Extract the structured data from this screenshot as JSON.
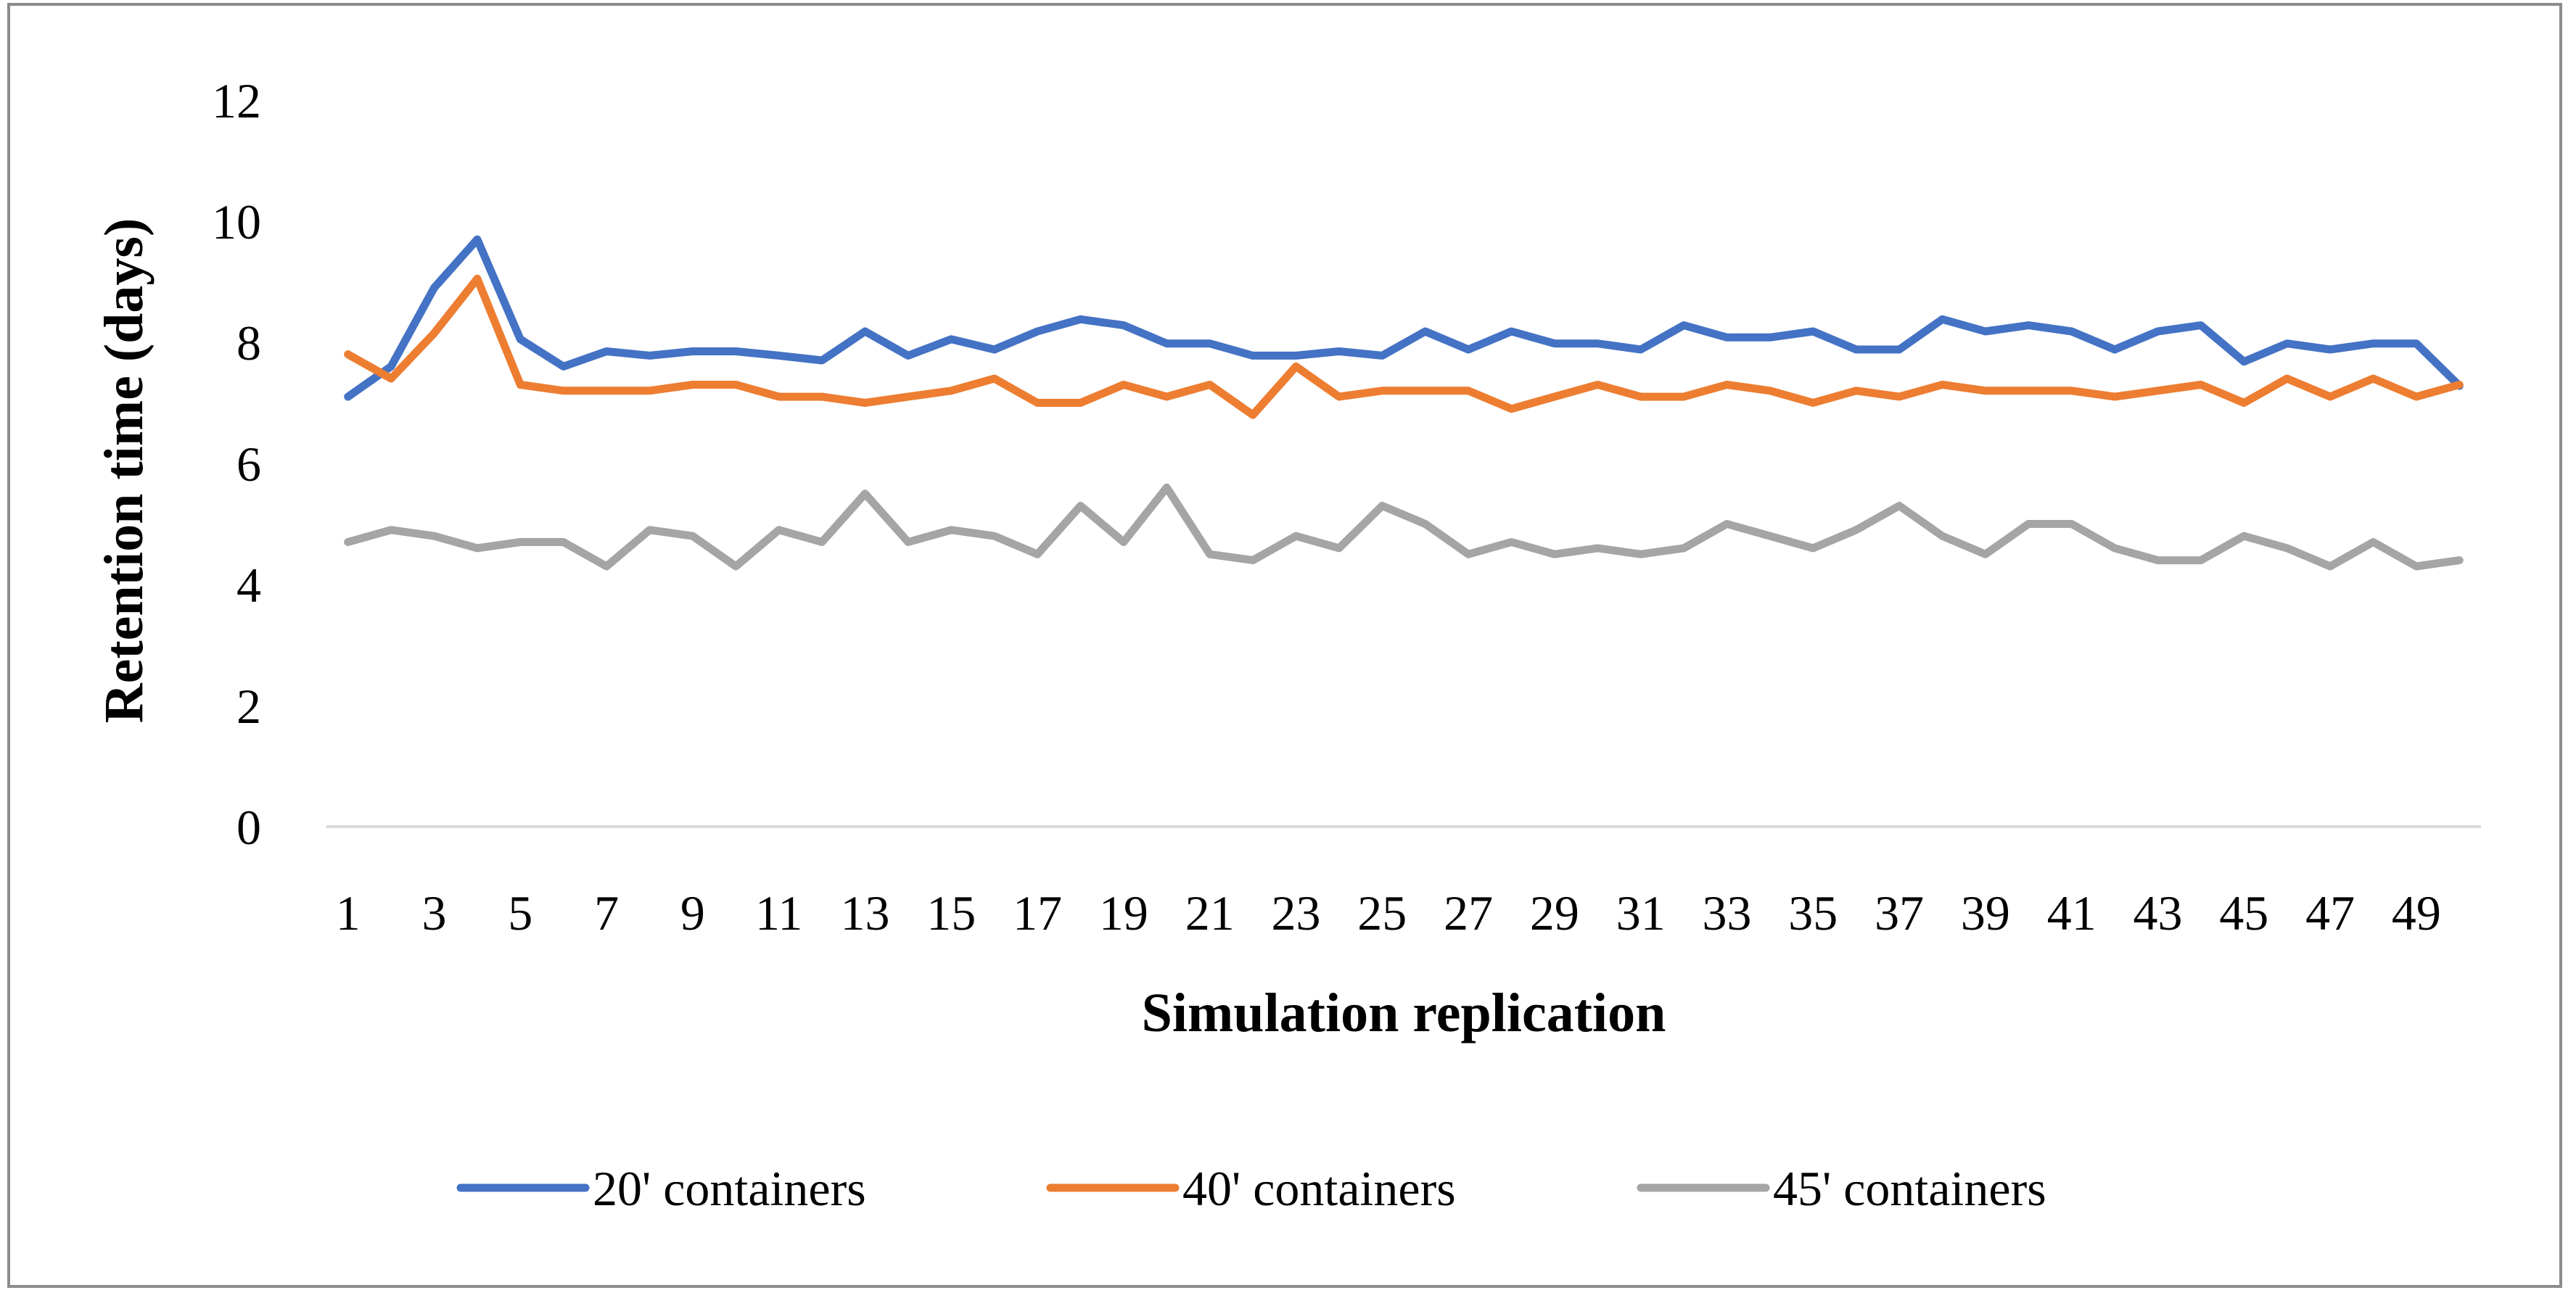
{
  "chart_data": {
    "type": "line",
    "title": "",
    "xlabel": "Simulation replication",
    "ylabel": "Retention time (days)",
    "ylim": [
      0,
      12
    ],
    "yticks": [
      0,
      2,
      4,
      6,
      8,
      10,
      12
    ],
    "grid": false,
    "legend_position": "bottom",
    "x": [
      1,
      2,
      3,
      4,
      5,
      6,
      7,
      8,
      9,
      10,
      11,
      12,
      13,
      14,
      15,
      16,
      17,
      18,
      19,
      20,
      21,
      22,
      23,
      24,
      25,
      26,
      27,
      28,
      29,
      30,
      31,
      32,
      33,
      34,
      35,
      36,
      37,
      38,
      39,
      40,
      41,
      42,
      43,
      44,
      45,
      46,
      47,
      48,
      49,
      50
    ],
    "xtick_labels": [
      "1",
      "3",
      "5",
      "7",
      "9",
      "11",
      "13",
      "15",
      "17",
      "19",
      "21",
      "23",
      "25",
      "27",
      "29",
      "31",
      "33",
      "35",
      "37",
      "39",
      "41",
      "43",
      "45",
      "47",
      "49"
    ],
    "series": [
      {
        "name": "20' containers",
        "color": "#4472c4",
        "values": [
          7.1,
          7.6,
          8.9,
          9.7,
          8.05,
          7.6,
          7.85,
          7.78,
          7.85,
          7.85,
          7.78,
          7.7,
          8.18,
          7.78,
          8.05,
          7.88,
          8.18,
          8.38,
          8.28,
          7.98,
          7.98,
          7.78,
          7.78,
          7.85,
          7.78,
          8.18,
          7.88,
          8.18,
          7.98,
          7.98,
          7.88,
          8.28,
          8.08,
          8.08,
          8.18,
          7.88,
          7.88,
          8.38,
          8.18,
          8.28,
          8.18,
          7.88,
          8.18,
          8.28,
          7.68,
          7.98,
          7.88,
          7.98,
          7.98,
          7.28
        ]
      },
      {
        "name": "40' containers",
        "color": "#ed7d31",
        "values": [
          7.8,
          7.4,
          8.15,
          9.05,
          7.3,
          7.2,
          7.2,
          7.2,
          7.3,
          7.3,
          7.1,
          7.1,
          7.0,
          7.1,
          7.2,
          7.4,
          7.0,
          7.0,
          7.3,
          7.1,
          7.3,
          6.8,
          7.6,
          7.1,
          7.2,
          7.2,
          7.2,
          6.9,
          7.1,
          7.3,
          7.1,
          7.1,
          7.3,
          7.2,
          7.0,
          7.2,
          7.1,
          7.3,
          7.2,
          7.2,
          7.2,
          7.1,
          7.2,
          7.3,
          7.0,
          7.4,
          7.1,
          7.4,
          7.1,
          7.3
        ]
      },
      {
        "name": "45' containers",
        "color": "#a5a5a5",
        "values": [
          4.7,
          4.9,
          4.8,
          4.6,
          4.7,
          4.7,
          4.3,
          4.9,
          4.8,
          4.3,
          4.9,
          4.7,
          5.5,
          4.7,
          4.9,
          4.8,
          4.5,
          5.3,
          4.7,
          5.6,
          4.5,
          4.4,
          4.8,
          4.6,
          5.3,
          5.0,
          4.5,
          4.7,
          4.5,
          4.6,
          4.5,
          4.6,
          5.0,
          4.8,
          4.6,
          4.9,
          5.3,
          4.8,
          4.5,
          5.0,
          5.0,
          4.6,
          4.4,
          4.4,
          4.8,
          4.6,
          4.3,
          4.7,
          4.3,
          4.4
        ]
      }
    ]
  }
}
